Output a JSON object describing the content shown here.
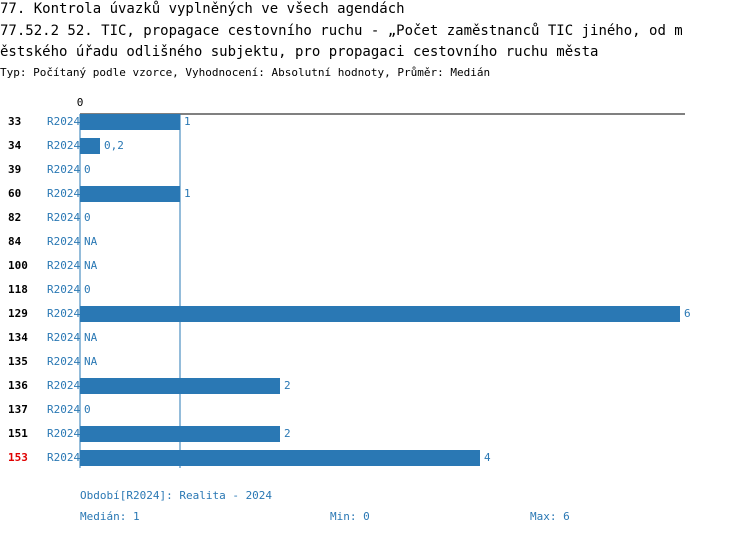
{
  "chart_data": {
    "type": "hbar",
    "title_lines": [
      "77. Kontrola úvazků vyplněných ve všech agendách",
      "77.52.2 52. TIC, propagace cestovního ruchu - „Počet zaměstnanců TIC jiného, od m",
      "ěstského úřadu odlišného subjektu, pro propagaci cestovního ruchu města"
    ],
    "subtitle": "Typ: Počítaný podle vzorce, Vyhodnocení: Absolutní hodnoty, Průměr: Medián",
    "categories": [
      "33",
      "34",
      "39",
      "60",
      "82",
      "84",
      "100",
      "118",
      "129",
      "134",
      "135",
      "136",
      "137",
      "151",
      "153"
    ],
    "category_colors": [
      "#000000",
      "#000000",
      "#000000",
      "#000000",
      "#000000",
      "#000000",
      "#000000",
      "#000000",
      "#000000",
      "#000000",
      "#000000",
      "#000000",
      "#000000",
      "#000000",
      "#e00000"
    ],
    "series": [
      {
        "name": "R2024",
        "color": "#2a78b4",
        "values": [
          1,
          0.2,
          0,
          1,
          0,
          null,
          null,
          0,
          6,
          null,
          null,
          2,
          0,
          2,
          4
        ],
        "value_labels": [
          "1",
          "0,2",
          "0",
          "1",
          "0",
          "NA",
          "NA",
          "0",
          "6",
          "NA",
          "NA",
          "2",
          "0",
          "2",
          "4"
        ]
      }
    ],
    "xlim": [
      0,
      6.05
    ],
    "xticks": [
      0
    ],
    "period": "Období[R2024]: Realita - 2024",
    "median": {
      "value": 1,
      "label": "Medián: 1"
    },
    "min": {
      "value": 0,
      "label": "Min: 0"
    },
    "max": {
      "value": 6,
      "label": "Max: 6"
    }
  }
}
